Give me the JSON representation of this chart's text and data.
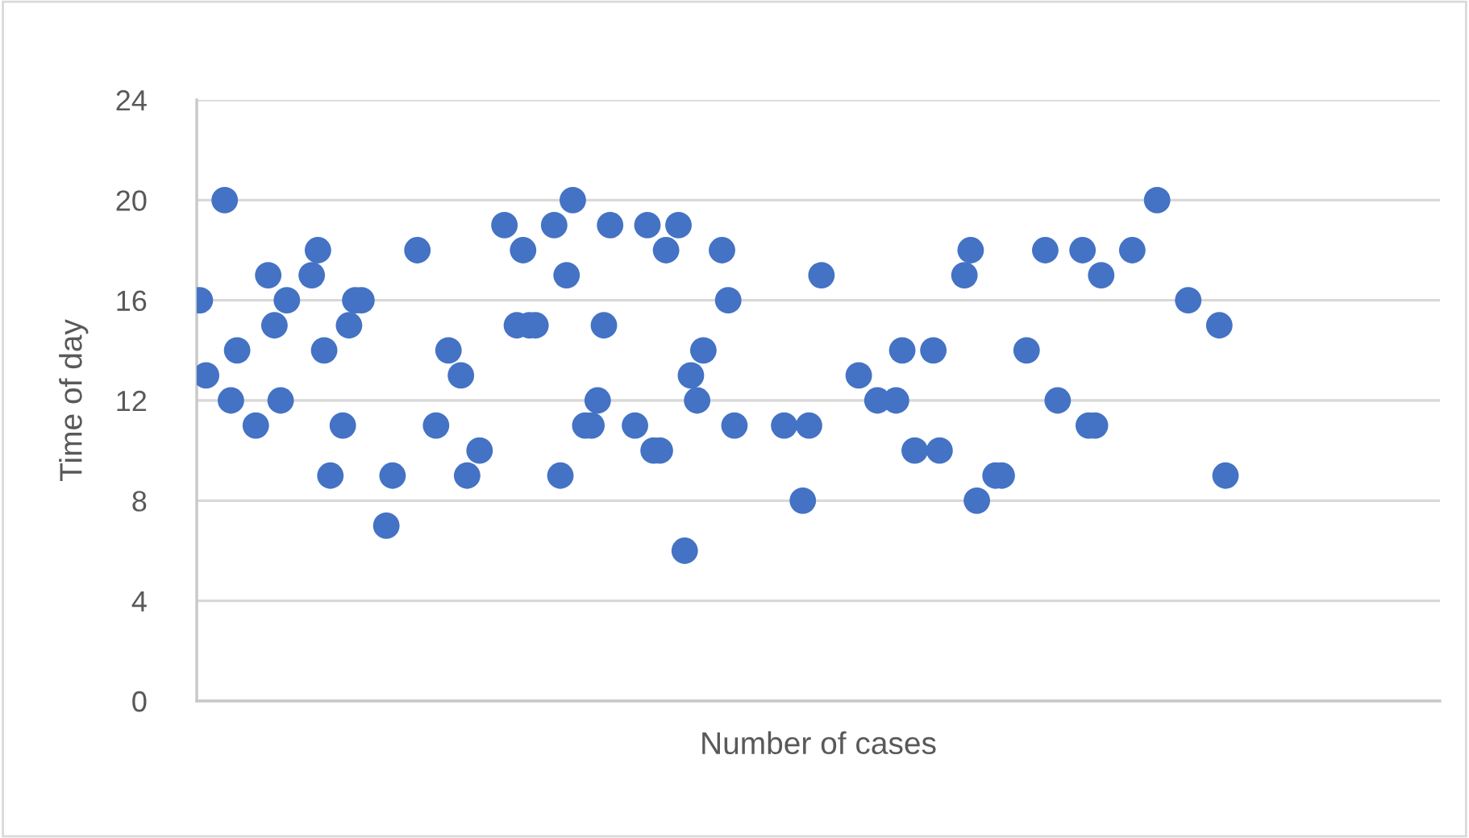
{
  "chart_data": {
    "type": "scatter",
    "xlabel": "Number of cases",
    "ylabel": "Time of day",
    "color": "#4472c4",
    "marker": "circle",
    "grid": "y",
    "tick_labels": "y",
    "ylim": [
      0,
      24
    ],
    "yticks": [
      0,
      4,
      8,
      12,
      16,
      20,
      24
    ],
    "categories": [
      null,
      null,
      null,
      null,
      null,
      null,
      null,
      null,
      null,
      null,
      null,
      null,
      null,
      null,
      null,
      null,
      null,
      null,
      null,
      null,
      null,
      null,
      null,
      null,
      null,
      null,
      null,
      null,
      null,
      null,
      null,
      null,
      null,
      null,
      null,
      null,
      null,
      null,
      null,
      null,
      null,
      null,
      null,
      null,
      null,
      null,
      null,
      null,
      null,
      null,
      null,
      null,
      null,
      null,
      null,
      null,
      null,
      null,
      null,
      null,
      null,
      null,
      null,
      null,
      null,
      null,
      null,
      null,
      null,
      null,
      null,
      null,
      null,
      null,
      null,
      null,
      null,
      null,
      null,
      null,
      null,
      null,
      null,
      null,
      null,
      null,
      null,
      null,
      null,
      null,
      null,
      null,
      null,
      null,
      null,
      null,
      null,
      null,
      null,
      null,
      null,
      null,
      null,
      null,
      null,
      null,
      null,
      null,
      null,
      null,
      null,
      null,
      null,
      null,
      null,
      null,
      null,
      null,
      null,
      null,
      null,
      null,
      null,
      null,
      null,
      null,
      null,
      null,
      null,
      null,
      null,
      null,
      null,
      null,
      null,
      null,
      null,
      null,
      null,
      null,
      null,
      null,
      null,
      null,
      null,
      null,
      null,
      null,
      null,
      null,
      null,
      null,
      null,
      null,
      null,
      null,
      null,
      null,
      null,
      null,
      null,
      null,
      null,
      null,
      null,
      null,
      null,
      null,
      null,
      null,
      null,
      null,
      null,
      null,
      null,
      null,
      null,
      null,
      null,
      null,
      null,
      null,
      null,
      null,
      null,
      null,
      null,
      null,
      null,
      null,
      null,
      null,
      null,
      null,
      null,
      null,
      null,
      null,
      null,
      null
    ],
    "values": [
      16,
      13,
      null,
      null,
      20,
      12,
      14,
      null,
      null,
      11,
      null,
      17,
      15,
      12,
      16,
      null,
      null,
      null,
      17,
      18,
      14,
      9,
      null,
      11,
      15,
      16,
      16,
      null,
      null,
      null,
      7,
      9,
      null,
      null,
      null,
      18,
      null,
      null,
      11,
      null,
      14,
      null,
      13,
      9,
      null,
      10,
      null,
      null,
      null,
      19,
      null,
      15,
      18,
      15,
      15,
      null,
      null,
      19,
      9,
      17,
      20,
      null,
      11,
      11,
      12,
      15,
      19,
      null,
      null,
      null,
      11,
      null,
      19,
      10,
      10,
      18,
      null,
      19,
      6,
      13,
      12,
      14,
      null,
      null,
      18,
      16,
      11,
      null,
      null,
      null,
      null,
      null,
      null,
      null,
      11,
      null,
      null,
      8,
      11,
      null,
      17,
      null,
      null,
      null,
      null,
      null,
      13,
      null,
      null,
      12,
      null,
      null,
      12,
      14,
      null,
      10,
      null,
      null,
      14,
      10,
      null,
      null,
      null,
      17,
      18,
      8,
      null,
      null,
      9,
      9,
      null,
      null,
      null,
      14,
      null,
      null,
      18,
      null,
      12,
      null,
      null,
      null,
      18,
      11,
      11,
      17,
      null,
      null,
      null,
      null,
      18,
      null,
      null,
      null,
      20,
      null,
      null,
      null,
      null,
      16,
      null,
      null,
      null,
      null,
      15,
      9,
      null,
      null,
      null,
      null,
      null,
      null,
      null,
      null,
      null,
      null,
      null,
      null,
      null,
      null,
      null,
      null,
      null,
      null,
      null,
      null,
      null,
      null,
      null,
      null,
      null,
      null,
      null,
      null,
      null,
      null,
      null,
      null,
      null,
      null
    ]
  }
}
